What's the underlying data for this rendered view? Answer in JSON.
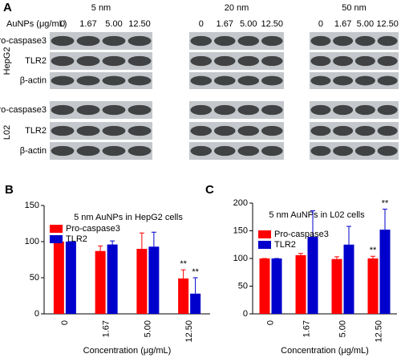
{
  "panel_a": {
    "label": "A",
    "unit_label": "AuNPs (μg/mL)",
    "groups": [
      {
        "title": "5 nm",
        "concentrations": [
          "0",
          "1.67",
          "5.00",
          "12.50"
        ]
      },
      {
        "title": "20 nm",
        "concentrations": [
          "0",
          "1.67",
          "5.00",
          "12.50"
        ]
      },
      {
        "title": "50 nm",
        "concentrations": [
          "0",
          "1.67",
          "5.00",
          "12.50"
        ]
      }
    ],
    "cell_lines": [
      {
        "name": "HepG2",
        "proteins": [
          "Pro-caspase3",
          "TLR2",
          "β-actin"
        ]
      },
      {
        "name": "L02",
        "proteins": [
          "Pro-caspase3",
          "TLR2",
          "β-actin"
        ]
      }
    ]
  },
  "chart_data": [
    {
      "type": "bar",
      "panel_label": "B",
      "title": "5 nm AuNPs in HepG2 cells",
      "x_label": "Concentration (μg/mL)",
      "categories": [
        "0",
        "1.67",
        "5.00",
        "12.50"
      ],
      "series": [
        {
          "name": "Pro-caspase3",
          "color": "#ff0000",
          "values": [
            100,
            87,
            90,
            49
          ],
          "errors": [
            0,
            7,
            22,
            12
          ],
          "significance": [
            null,
            null,
            null,
            "**"
          ]
        },
        {
          "name": "TLR2",
          "color": "#0000cc",
          "values": [
            100,
            96,
            93,
            28
          ],
          "errors": [
            0,
            5,
            20,
            22
          ],
          "significance": [
            null,
            null,
            null,
            "**"
          ]
        }
      ],
      "ylim": [
        0,
        150
      ],
      "yticks": [
        0,
        50,
        100,
        150
      ],
      "legend": "top-left"
    },
    {
      "type": "bar",
      "panel_label": "C",
      "title": "5 nm AuNPs in L02 cells",
      "x_label": "Concentration (μg/mL)",
      "categories": [
        "0",
        "1.67",
        "5.00",
        "12.50"
      ],
      "series": [
        {
          "name": "Pro-caspase3",
          "color": "#ff0000",
          "values": [
            100,
            106,
            99,
            100
          ],
          "errors": [
            0,
            3,
            4,
            4
          ],
          "significance": [
            null,
            null,
            null,
            "**"
          ]
        },
        {
          "name": "TLR2",
          "color": "#0000cc",
          "values": [
            100,
            139,
            125,
            152
          ],
          "errors": [
            0,
            47,
            33,
            37
          ],
          "significance": [
            null,
            null,
            null,
            "**"
          ]
        }
      ],
      "ylim": [
        0,
        200
      ],
      "yticks": [
        0,
        50,
        100,
        150,
        200
      ],
      "legend": "top-left"
    }
  ]
}
